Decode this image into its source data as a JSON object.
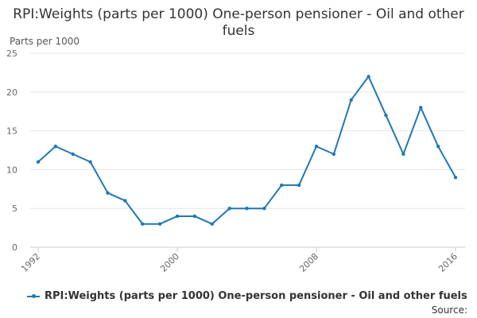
{
  "colors": {
    "series": "#1f78b4",
    "grid": "#e6e6e6",
    "axis": "#cccccc",
    "text": "#666666"
  },
  "chart_data": {
    "type": "line",
    "title": "RPI:Weights (parts per 1000) One-person pensioner - Oil and other fuels",
    "ylabel": "Parts per 1000",
    "xlabel": "",
    "ylim": [
      0,
      25
    ],
    "yticks": [
      0,
      5,
      10,
      15,
      20,
      25
    ],
    "xlim": [
      1992,
      2016
    ],
    "xticks": [
      1992,
      2000,
      2008,
      2016
    ],
    "grid": true,
    "legend_position": "bottom",
    "series": [
      {
        "name": "RPI:Weights (parts per 1000) One-person pensioner - Oil and other fuels",
        "x": [
          1992,
          1993,
          1994,
          1995,
          1996,
          1997,
          1998,
          1999,
          2000,
          2001,
          2002,
          2003,
          2004,
          2005,
          2006,
          2007,
          2008,
          2009,
          2010,
          2011,
          2012,
          2013,
          2014,
          2015,
          2016
        ],
        "values": [
          11,
          13,
          12,
          11,
          7,
          6,
          3,
          3,
          4,
          4,
          3,
          5,
          5,
          5,
          8,
          8,
          13,
          12,
          19,
          22,
          17,
          12,
          18,
          13,
          9
        ]
      }
    ],
    "source": "Source:"
  }
}
